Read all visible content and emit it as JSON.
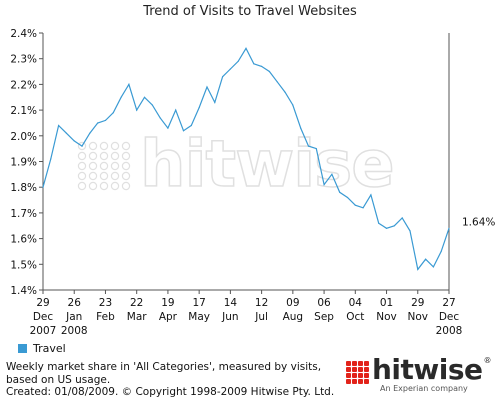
{
  "chart_data": {
    "type": "line",
    "title": "Trend of Visits to Travel Websites",
    "xlabel": "",
    "ylabel": "",
    "ylim": [
      1.4,
      2.4
    ],
    "yticks": [
      "2.4%",
      "2.3%",
      "2.2%",
      "2.1%",
      "2.0%",
      "1.9%",
      "1.8%",
      "1.7%",
      "1.6%",
      "1.5%",
      "1.4%"
    ],
    "ytick_values": [
      2.4,
      2.3,
      2.2,
      2.1,
      2.0,
      1.9,
      1.8,
      1.7,
      1.6,
      1.5,
      1.4
    ],
    "xticks": [
      {
        "day": "29",
        "month": "Dec",
        "year": "2007"
      },
      {
        "day": "26",
        "month": "Jan",
        "year": "2008"
      },
      {
        "day": "23",
        "month": "Feb",
        "year": ""
      },
      {
        "day": "22",
        "month": "Mar",
        "year": ""
      },
      {
        "day": "19",
        "month": "Apr",
        "year": ""
      },
      {
        "day": "17",
        "month": "May",
        "year": ""
      },
      {
        "day": "14",
        "month": "Jun",
        "year": ""
      },
      {
        "day": "12",
        "month": "Jul",
        "year": ""
      },
      {
        "day": "09",
        "month": "Aug",
        "year": ""
      },
      {
        "day": "06",
        "month": "Sep",
        "year": ""
      },
      {
        "day": "04",
        "month": "Oct",
        "year": ""
      },
      {
        "day": "01",
        "month": "Nov",
        "year": ""
      },
      {
        "day": "29",
        "month": "Nov",
        "year": ""
      },
      {
        "day": "27",
        "month": "Dec",
        "year": "2008"
      }
    ],
    "grid": false,
    "legend": "bottom-left",
    "series": [
      {
        "name": "Travel",
        "color": "#3a9ad3",
        "values": [
          1.8,
          1.91,
          2.04,
          2.01,
          1.98,
          1.96,
          2.01,
          2.05,
          2.06,
          2.09,
          2.15,
          2.2,
          2.1,
          2.15,
          2.12,
          2.07,
          2.03,
          2.1,
          2.02,
          2.04,
          2.11,
          2.19,
          2.13,
          2.23,
          2.26,
          2.29,
          2.34,
          2.28,
          2.27,
          2.25,
          2.21,
          2.17,
          2.12,
          2.03,
          1.96,
          1.95,
          1.81,
          1.85,
          1.78,
          1.76,
          1.73,
          1.72,
          1.77,
          1.66,
          1.64,
          1.65,
          1.68,
          1.63,
          1.48,
          1.52,
          1.49,
          1.55,
          1.64
        ]
      }
    ],
    "end_label": "1.64%"
  },
  "legend": {
    "label": "Travel",
    "color": "#3a9ad3"
  },
  "footnote": {
    "line1": "Weekly market share in 'All Categories', measured by visits,",
    "line2": "based on US usage.",
    "line3": "Created: 01/08/2009. © Copyright 1998-2009 Hitwise Pty. Ltd."
  },
  "brand": {
    "name": "hitwise",
    "tagline": "An Experian company",
    "watermark": "hitwise",
    "color": "#e2231a"
  }
}
